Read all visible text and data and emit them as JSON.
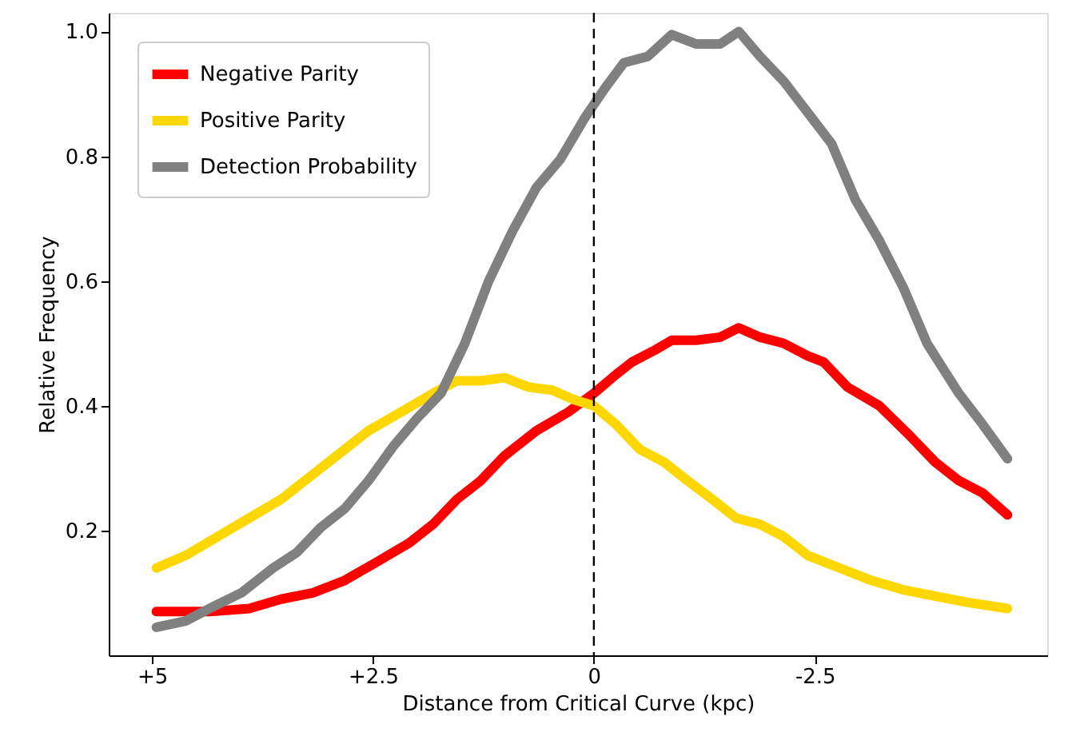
{
  "chart_data": {
    "type": "line",
    "xlabel": "Distance from Critical Curve (kpc)",
    "ylabel": "Relative Frequency",
    "xlim": [
      5.49,
      -5.13
    ],
    "ylim": [
      0.0,
      1.03
    ],
    "xticks": [
      {
        "value": 5,
        "label": "+5"
      },
      {
        "value": 2.5,
        "label": "+2.5"
      },
      0,
      -2.5
    ],
    "yticks": [
      {
        "value": 0.2,
        "label": "0.2"
      },
      {
        "value": 0.4,
        "label": "0.4"
      },
      {
        "value": 0.6,
        "label": "0.6"
      },
      {
        "value": 0.8,
        "label": "0.8"
      },
      {
        "value": 1.0,
        "label": "1.0"
      }
    ],
    "grid": false,
    "legend": "top left",
    "marker": "none",
    "line_style": "solid",
    "ref_lines": [
      {
        "axis": "x",
        "value": 0,
        "color": "#000000",
        "line_style": "dashed"
      }
    ],
    "series": [
      {
        "name": "Negative Parity",
        "color": "#ff0000",
        "x": [
          4.95,
          4.35,
          3.9,
          3.54,
          3.18,
          2.82,
          2.45,
          2.09,
          1.82,
          1.55,
          1.28,
          1.01,
          0.65,
          0.29,
          0,
          -0.25,
          -0.43,
          -0.7,
          -0.88,
          -1.16,
          -1.43,
          -1.64,
          -1.88,
          -2.15,
          -2.42,
          -2.6,
          -2.87,
          -3.23,
          -3.59,
          -3.86,
          -4.13,
          -4.4,
          -4.68
        ],
        "values": [
          0.07,
          0.07,
          0.075,
          0.09,
          0.1,
          0.12,
          0.15,
          0.18,
          0.21,
          0.25,
          0.28,
          0.32,
          0.36,
          0.39,
          0.42,
          0.45,
          0.47,
          0.49,
          0.505,
          0.505,
          0.51,
          0.525,
          0.51,
          0.5,
          0.48,
          0.47,
          0.43,
          0.4,
          0.35,
          0.31,
          0.28,
          0.26,
          0.225
        ]
      },
      {
        "name": "Positive Parity",
        "color": "#ffd700",
        "x": [
          4.95,
          4.62,
          4.26,
          3.9,
          3.54,
          3.18,
          2.91,
          2.55,
          2.18,
          1.82,
          1.55,
          1.28,
          1.01,
          0.74,
          0.47,
          0.23,
          0,
          -0.25,
          -0.52,
          -0.79,
          -1.06,
          -1.34,
          -1.61,
          -1.88,
          -2.15,
          -2.42,
          -2.78,
          -3.14,
          -3.5,
          -3.86,
          -4.22,
          -4.68
        ],
        "values": [
          0.14,
          0.16,
          0.19,
          0.22,
          0.25,
          0.29,
          0.32,
          0.36,
          0.39,
          0.42,
          0.44,
          0.44,
          0.445,
          0.43,
          0.425,
          0.41,
          0.4,
          0.37,
          0.33,
          0.31,
          0.28,
          0.25,
          0.22,
          0.21,
          0.19,
          0.16,
          0.14,
          0.12,
          0.105,
          0.095,
          0.085,
          0.075
        ]
      },
      {
        "name": "Detection Probability",
        "color": "#808080",
        "x": [
          4.95,
          4.62,
          4.35,
          3.99,
          3.63,
          3.36,
          3.09,
          2.82,
          2.55,
          2.27,
          2.0,
          1.73,
          1.46,
          1.19,
          0.92,
          0.65,
          0.38,
          0.11,
          -0.13,
          -0.34,
          -0.61,
          -0.88,
          -1.16,
          -1.43,
          -1.64,
          -1.88,
          -2.15,
          -2.42,
          -2.69,
          -2.96,
          -3.23,
          -3.5,
          -3.77,
          -4.13,
          -4.4,
          -4.68
        ],
        "values": [
          0.045,
          0.055,
          0.075,
          0.1,
          0.14,
          0.165,
          0.205,
          0.235,
          0.28,
          0.335,
          0.38,
          0.42,
          0.5,
          0.6,
          0.68,
          0.75,
          0.795,
          0.86,
          0.91,
          0.95,
          0.96,
          0.995,
          0.98,
          0.98,
          1.0,
          0.96,
          0.92,
          0.87,
          0.82,
          0.73,
          0.665,
          0.59,
          0.5,
          0.42,
          0.37,
          0.315
        ]
      }
    ]
  }
}
